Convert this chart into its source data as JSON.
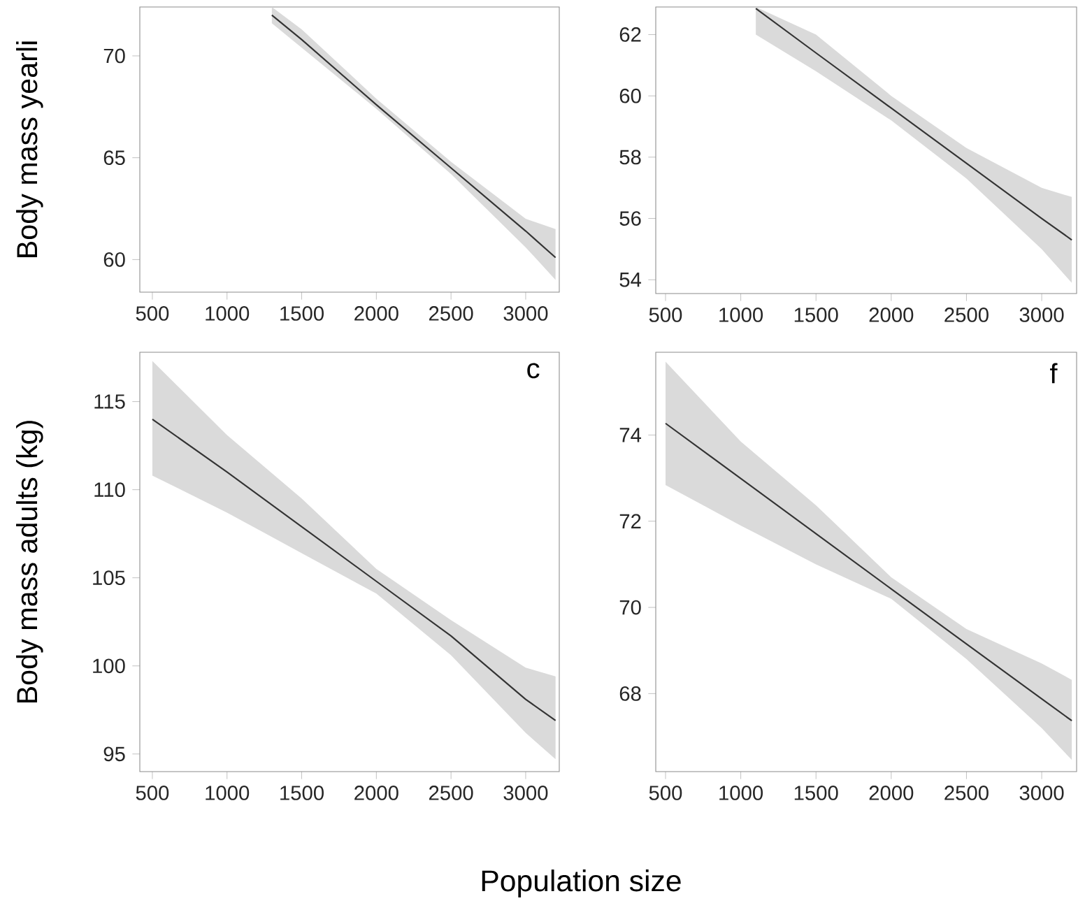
{
  "chart_data": [
    {
      "type": "line",
      "ylabel": "Body mass yearli",
      "xlim": [
        416,
        3225
      ],
      "ylim": [
        58.4,
        72.4
      ],
      "xticks": [
        500,
        1000,
        1500,
        2000,
        2500,
        3000
      ],
      "yticks": [
        60,
        65,
        70
      ],
      "series": [
        {
          "color": "#333333",
          "x": [
            1300,
            1500,
            2000,
            2500,
            3000,
            3200
          ],
          "values": [
            72.0,
            70.8,
            67.6,
            64.5,
            61.4,
            60.1
          ],
          "lower": [
            71.6,
            70.4,
            67.4,
            64.2,
            60.6,
            59.0
          ],
          "upper": [
            72.4,
            71.3,
            67.9,
            64.8,
            62.0,
            61.5
          ]
        }
      ]
    },
    {
      "type": "line",
      "xlim": [
        435,
        3232
      ],
      "ylim": [
        53.55,
        62.9
      ],
      "xticks": [
        500,
        1000,
        1500,
        2000,
        2500,
        3000
      ],
      "yticks": [
        54,
        56,
        58,
        60,
        62
      ],
      "series": [
        {
          "color": "#333333",
          "x": [
            1100,
            1500,
            2000,
            2500,
            3000,
            3200
          ],
          "values": [
            62.85,
            61.4,
            59.6,
            57.8,
            56.0,
            55.3
          ],
          "lower": [
            62.0,
            60.8,
            59.2,
            57.3,
            55.0,
            53.9
          ],
          "upper": [
            62.9,
            62.0,
            60.0,
            58.3,
            57.0,
            56.7
          ]
        }
      ]
    },
    {
      "type": "line",
      "ylabel": "Body mass adults (kg)",
      "xlabel": "Population size",
      "annotations": [
        "c"
      ],
      "xlim": [
        416,
        3225
      ],
      "ylim": [
        94.0,
        117.8
      ],
      "xticks": [
        500,
        1000,
        1500,
        2000,
        2500,
        3000
      ],
      "yticks": [
        95,
        100,
        105,
        110,
        115
      ],
      "series": [
        {
          "color": "#333333",
          "x": [
            500,
            1000,
            1500,
            2000,
            2500,
            3000,
            3200
          ],
          "values": [
            114.0,
            111.0,
            107.9,
            104.8,
            101.7,
            98.1,
            96.9
          ],
          "lower": [
            110.8,
            108.7,
            106.4,
            104.1,
            100.6,
            96.2,
            94.7
          ],
          "upper": [
            117.3,
            113.1,
            109.5,
            105.5,
            102.6,
            99.9,
            99.4
          ]
        }
      ]
    },
    {
      "type": "line",
      "annotations": [
        "f"
      ],
      "xlim": [
        435,
        3232
      ],
      "ylim": [
        66.19,
        75.92
      ],
      "xticks": [
        500,
        1000,
        1500,
        2000,
        2500,
        3000
      ],
      "yticks": [
        68,
        70,
        72,
        74
      ],
      "series": [
        {
          "color": "#333333",
          "x": [
            500,
            1000,
            1500,
            2000,
            2500,
            3000,
            3200
          ],
          "values": [
            74.27,
            72.99,
            71.71,
            70.43,
            69.15,
            67.88,
            67.37
          ],
          "lower": [
            72.84,
            71.9,
            71.0,
            70.2,
            68.8,
            67.2,
            66.46
          ],
          "upper": [
            75.7,
            73.85,
            72.37,
            70.7,
            69.5,
            68.7,
            68.32
          ]
        }
      ]
    }
  ]
}
